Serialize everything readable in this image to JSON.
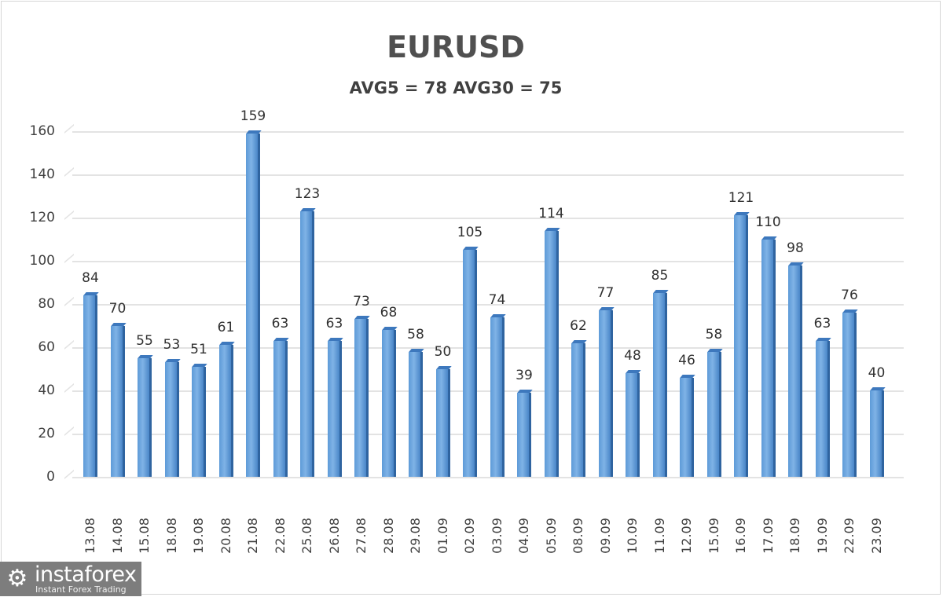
{
  "chart_data": {
    "type": "bar",
    "title": "EURUSD",
    "subtitle": "AVG5 = 78 AVG30 = 75",
    "xlabel": "",
    "ylabel": "",
    "ylim": [
      0,
      160
    ],
    "yticks": [
      "0",
      "20",
      "40",
      "60",
      "80",
      "100",
      "120",
      "140",
      "160"
    ],
    "grid": true,
    "legend": null,
    "data_labels": true,
    "categories": [
      "13.08",
      "14.08",
      "15.08",
      "18.08",
      "19.08",
      "20.08",
      "21.08",
      "22.08",
      "25.08",
      "26.08",
      "27.08",
      "28.08",
      "29.08",
      "01.09",
      "02.09",
      "03.09",
      "04.09",
      "05.09",
      "08.09",
      "09.09",
      "10.09",
      "11.09",
      "12.09",
      "15.09",
      "16.09",
      "17.09",
      "18.09",
      "19.09",
      "22.09",
      "23.09"
    ],
    "values": [
      84,
      70,
      55,
      53,
      51,
      61,
      159,
      63,
      123,
      63,
      73,
      68,
      58,
      50,
      105,
      74,
      39,
      114,
      62,
      77,
      48,
      85,
      46,
      58,
      121,
      110,
      98,
      63,
      76,
      40
    ],
    "bar_color": "#5b9bd5"
  },
  "branding": {
    "logo_icon": "gear-person-icon",
    "name": "instaforex",
    "tagline": "Instant Forex Trading"
  }
}
